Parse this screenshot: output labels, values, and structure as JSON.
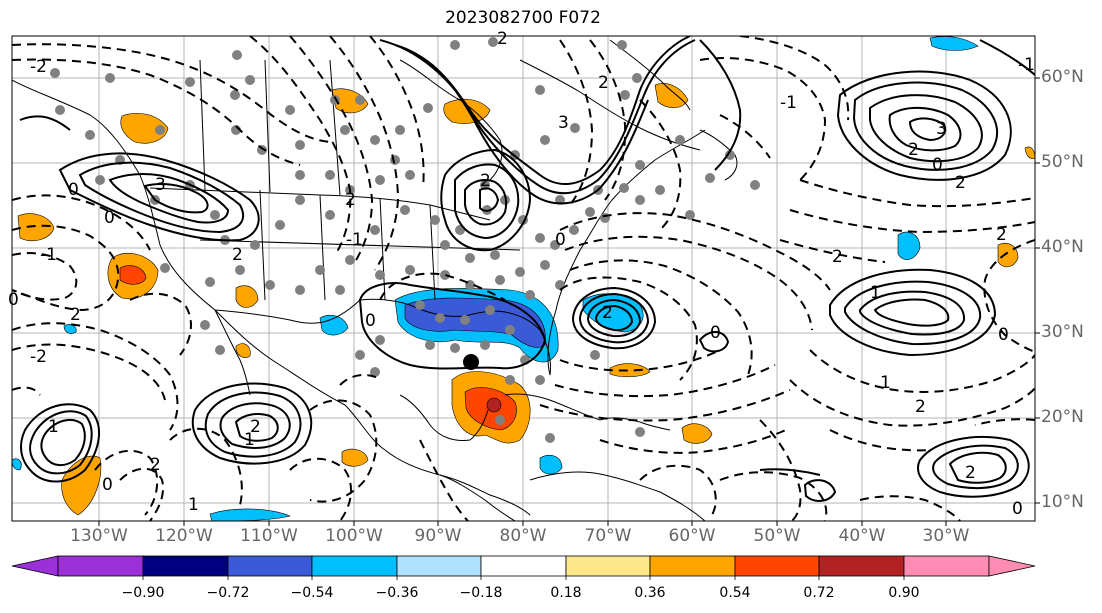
{
  "title": "2023082700 F072",
  "lat_labels": [
    "60°N",
    "50°N",
    "40°N",
    "30°N",
    "20°N",
    "10°N"
  ],
  "lon_labels": [
    "130°W",
    "120°W",
    "110°W",
    "100°W",
    "90°W",
    "80°W",
    "70°W",
    "60°W",
    "50°W",
    "40°W",
    "30°W"
  ],
  "contour_labels": {
    "zero": "0",
    "one": "1",
    "two": "2",
    "three": "3",
    "neg_one": "-1",
    "neg_two": "-2"
  },
  "colorbar": {
    "labels": [
      "−0.90",
      "−0.72",
      "−0.54",
      "−0.36",
      "−0.18",
      "0.18",
      "0.36",
      "0.54",
      "0.72",
      "0.90"
    ],
    "colors": [
      "#9b30d9",
      "#000080",
      "#3b5bd6",
      "#00bfff",
      "#b0e2ff",
      "#ffffff",
      "#fde98b",
      "#ffa500",
      "#ff4500",
      "#b22222",
      "#ff8cb4"
    ]
  },
  "colors": {
    "grid": "#b4b4b4",
    "axis_label": "#666666",
    "positive_shade": "#ffa500",
    "strong_positive_shade": "#ff4500",
    "negative_shade": "#00bfff",
    "strong_negative_shade": "#3b5bd6"
  }
}
